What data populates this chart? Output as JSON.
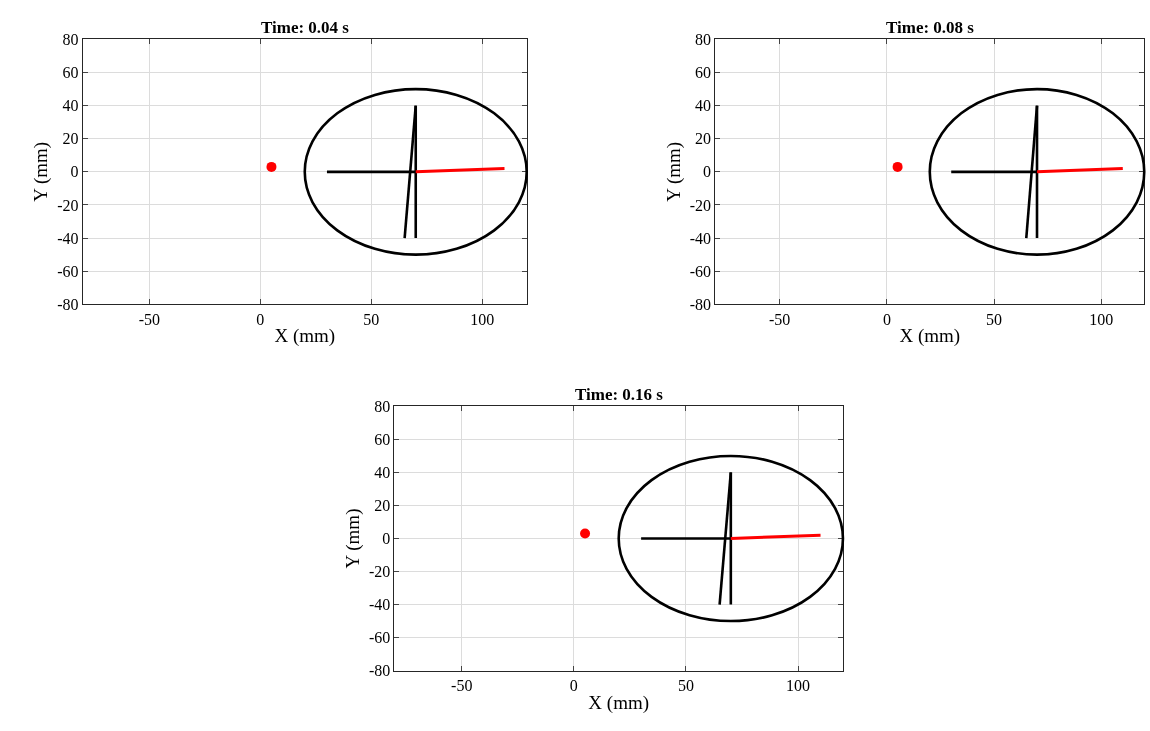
{
  "chart_data": [
    {
      "type": "line",
      "title": "Time: 0.04 s",
      "xlabel": "X (mm)",
      "ylabel": "Y (mm)",
      "xlim": [
        -80,
        120
      ],
      "ylim": [
        -80,
        80
      ],
      "xticks": [
        -50,
        0,
        50,
        100
      ],
      "yticks": [
        -80,
        -60,
        -40,
        -20,
        0,
        20,
        40,
        60,
        80
      ],
      "grid": true,
      "series": [
        {
          "color": "#000000",
          "x": [
            30,
            70
          ],
          "values": [
            0,
            0
          ]
        },
        {
          "color": "#000000",
          "x": [
            70,
            70
          ],
          "values": [
            40,
            -40
          ]
        },
        {
          "color": "#000000",
          "x": [
            70,
            65
          ],
          "values": [
            40,
            -40
          ]
        },
        {
          "color": "#ff0000",
          "x": [
            70,
            110
          ],
          "values": [
            0,
            2
          ]
        },
        {
          "type": "scatter",
          "color": "#ff0000",
          "marker": "circle",
          "x": [
            5
          ],
          "values": [
            3
          ]
        }
      ]
    },
    {
      "type": "line",
      "title": "Time: 0.08 s",
      "xlabel": "X (mm)",
      "ylabel": "Y (mm)",
      "xlim": [
        -80,
        120
      ],
      "ylim": [
        -80,
        80
      ],
      "xticks": [
        -50,
        0,
        50,
        100
      ],
      "yticks": [
        -80,
        -60,
        -40,
        -20,
        0,
        20,
        40,
        60,
        80
      ],
      "grid": true,
      "series": [
        {
          "color": "#000000",
          "x": [
            30,
            70
          ],
          "values": [
            0,
            0
          ]
        },
        {
          "color": "#000000",
          "x": [
            70,
            70
          ],
          "values": [
            40,
            -40
          ]
        },
        {
          "color": "#000000",
          "x": [
            70,
            65
          ],
          "values": [
            40,
            -40
          ]
        },
        {
          "color": "#ff0000",
          "x": [
            70,
            110
          ],
          "values": [
            0,
            2
          ]
        },
        {
          "type": "scatter",
          "color": "#ff0000",
          "marker": "circle",
          "x": [
            5
          ],
          "values": [
            3
          ]
        }
      ]
    },
    {
      "type": "line",
      "title": "Time: 0.16 s",
      "xlabel": "X (mm)",
      "ylabel": "Y (mm)",
      "xlim": [
        -80,
        120
      ],
      "ylim": [
        -80,
        80
      ],
      "xticks": [
        -50,
        0,
        50,
        100
      ],
      "yticks": [
        -80,
        -60,
        -40,
        -20,
        0,
        20,
        40,
        60,
        80
      ],
      "grid": true,
      "series": [
        {
          "color": "#000000",
          "x": [
            30,
            70
          ],
          "values": [
            0,
            0
          ]
        },
        {
          "color": "#000000",
          "x": [
            70,
            70
          ],
          "values": [
            40,
            -40
          ]
        },
        {
          "color": "#000000",
          "x": [
            70,
            65
          ],
          "values": [
            40,
            -40
          ]
        },
        {
          "color": "#ff0000",
          "x": [
            70,
            110
          ],
          "values": [
            0,
            2
          ]
        },
        {
          "type": "scatter",
          "color": "#ff0000",
          "marker": "circle",
          "x": [
            5
          ],
          "values": [
            3
          ]
        }
      ]
    }
  ]
}
